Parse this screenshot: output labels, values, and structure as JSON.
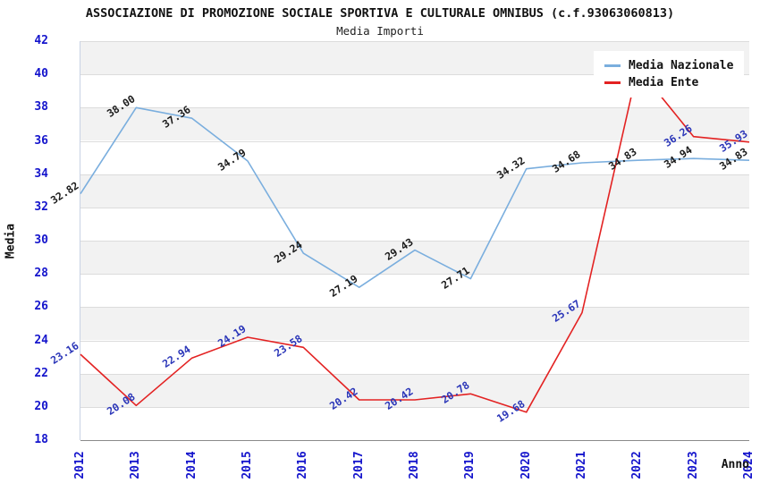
{
  "title": "ASSOCIAZIONE DI PROMOZIONE SOCIALE SPORTIVA E CULTURALE OMNIBUS (c.f.93063060813)",
  "subtitle": "Media Importi",
  "axes": {
    "y_label": "Media",
    "x_label": "Anno",
    "y_min": 18,
    "y_max": 42,
    "y_step": 2
  },
  "legend": {
    "position": "top-right",
    "items": [
      {
        "label": "Media Nazionale",
        "color": "#7aaede"
      },
      {
        "label": "Media Ente",
        "color": "#e32222"
      }
    ]
  },
  "colors": {
    "axis_tick_text": "#1414cc",
    "band_gray": "#f2f2f2",
    "gridline": "#dcdcdc",
    "axis_line": "#8a8a8a",
    "title_text": "#111111",
    "nazionale_line": "#7aaede",
    "ente_line": "#e32222",
    "nazionale_label_text": "#1a1a1a",
    "ente_label_text": "#2a35b8"
  },
  "chart_data": {
    "type": "line",
    "title": "Media Importi",
    "xlabel": "Anno",
    "ylabel": "Media",
    "ylim": [
      18,
      42
    ],
    "grid": true,
    "legend_position": "top-right",
    "x": [
      "2012",
      "2013",
      "2014",
      "2015",
      "2016",
      "2017",
      "2018",
      "2019",
      "2020",
      "2021",
      "2022",
      "2023",
      "2024"
    ],
    "series": [
      {
        "name": "Media Nazionale",
        "color": "#7aaede",
        "label_color": "#1a1a1a",
        "values": [
          32.82,
          38.0,
          37.36,
          34.79,
          29.24,
          27.19,
          29.43,
          27.71,
          34.32,
          34.68,
          34.83,
          34.94,
          34.83
        ],
        "labels": [
          "32.82",
          "38.00",
          "37.36",
          "34.79",
          "29.24",
          "27.19",
          "29.43",
          "27.71",
          "34.32",
          "34.68",
          "34.83",
          "34.94",
          "34.83"
        ]
      },
      {
        "name": "Media Ente",
        "color": "#e32222",
        "label_color": "#2a35b8",
        "values": [
          23.16,
          20.08,
          22.94,
          24.19,
          23.58,
          20.42,
          20.42,
          20.78,
          19.68,
          25.67,
          40.4,
          36.26,
          35.93
        ],
        "labels": [
          "23.16",
          "20.08",
          "22.94",
          "24.19",
          "23.58",
          "20.42",
          "20.42",
          "20.78",
          "19.68",
          "25.67",
          "",
          "36.26",
          "35.93"
        ],
        "note": "2022 point label is hidden behind the legend box"
      }
    ]
  }
}
